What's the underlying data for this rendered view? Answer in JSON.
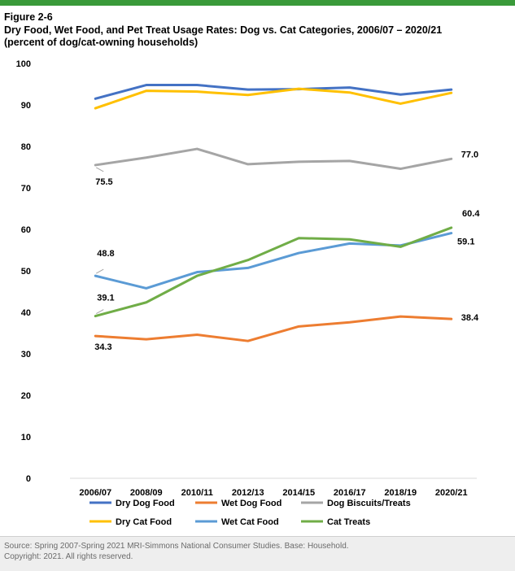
{
  "header": {
    "figure_label": "Figure 2-6",
    "title_line1": "Dry Food, Wet Food, and Pet Treat Usage Rates: Dog vs. Cat Categories, 2006/07 – 2020/21",
    "title_line2": "(percent of dog/cat-owning households)"
  },
  "footer": {
    "source": "Source: Spring 2007-Spring 2021 MRI-Simmons National Consumer Studies. Base: Household.",
    "copyright": "Copyright: 2021. All rights reserved."
  },
  "colors": {
    "top_rule": "#3a9a3a",
    "dry_dog_food": "#4472c4",
    "wet_dog_food": "#ed7d31",
    "dog_biscuits_treats": "#a5a5a5",
    "dry_cat_food": "#ffc000",
    "wet_cat_food": "#5b9bd5",
    "cat_treats": "#70ad47"
  },
  "chart_data": {
    "type": "line",
    "title": "Dry Food, Wet Food, and Pet Treat Usage Rates: Dog vs. Cat Categories, 2006/07 – 2020/21",
    "subtitle": "(percent of dog/cat-owning households)",
    "categories": [
      "2006/07",
      "2008/09",
      "2010/11",
      "2012/13",
      "2014/15",
      "2016/17",
      "2018/19",
      "2020/21"
    ],
    "ylim": [
      0,
      100
    ],
    "yticks": [
      0,
      10,
      20,
      30,
      40,
      50,
      60,
      70,
      80,
      90,
      100
    ],
    "grid": false,
    "legend_position": "bottom",
    "series": [
      {
        "name": "Dry Dog Food",
        "color": "#4472c4",
        "values": [
          91.5,
          94.8,
          94.8,
          93.7,
          93.8,
          94.2,
          92.5,
          93.7
        ]
      },
      {
        "name": "Wet Dog Food",
        "color": "#ed7d31",
        "values": [
          34.3,
          33.5,
          34.6,
          33.1,
          36.6,
          37.6,
          39.0,
          38.4
        ]
      },
      {
        "name": "Dog Biscuits/Treats",
        "color": "#a5a5a5",
        "values": [
          75.5,
          77.3,
          79.4,
          75.7,
          76.3,
          76.5,
          74.6,
          77.0
        ]
      },
      {
        "name": "Dry Cat Food",
        "color": "#ffc000",
        "values": [
          89.2,
          93.4,
          93.2,
          92.4,
          93.9,
          93.0,
          90.3,
          92.9
        ]
      },
      {
        "name": "Wet Cat Food",
        "color": "#5b9bd5",
        "values": [
          48.8,
          45.8,
          49.7,
          50.7,
          54.3,
          56.6,
          56.1,
          59.1
        ]
      },
      {
        "name": "Cat Treats",
        "color": "#70ad47",
        "values": [
          39.1,
          42.4,
          48.8,
          52.6,
          57.9,
          57.6,
          55.8,
          60.4
        ]
      }
    ],
    "annotations": [
      {
        "series": "Dog Biscuits/Treats",
        "category": "2006/07",
        "text": "75.5"
      },
      {
        "series": "Dog Biscuits/Treats",
        "category": "2020/21",
        "text": "77.0"
      },
      {
        "series": "Wet Cat Food",
        "category": "2006/07",
        "text": "48.8"
      },
      {
        "series": "Cat Treats",
        "category": "2006/07",
        "text": "39.1"
      },
      {
        "series": "Wet Dog Food",
        "category": "2006/07",
        "text": "34.3"
      },
      {
        "series": "Cat Treats",
        "category": "2020/21",
        "text": "60.4"
      },
      {
        "series": "Wet Cat Food",
        "category": "2020/21",
        "text": "59.1"
      },
      {
        "series": "Wet Dog Food",
        "category": "2020/21",
        "text": "38.4"
      }
    ]
  }
}
